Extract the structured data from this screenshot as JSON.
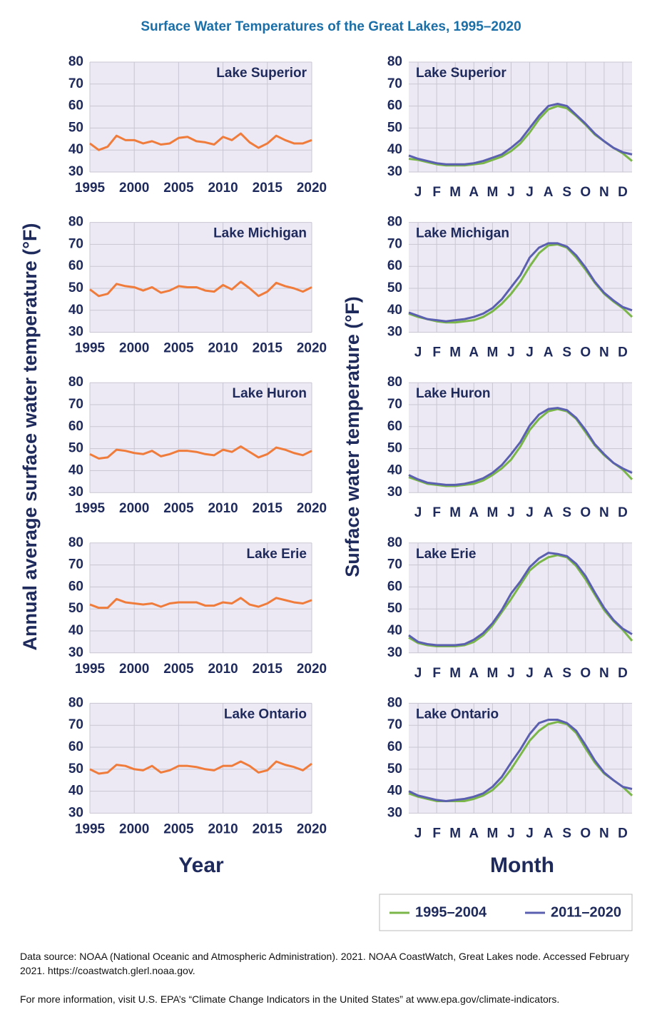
{
  "title": "Surface Water Temperatures of the Great Lakes, 1995–2020",
  "y_label_left": "Annual average surface water temperature (°F)",
  "y_label_right": "Surface water temperature (°F)",
  "x_label_left": "Year",
  "x_label_right": "Month",
  "notes": [
    "Data source: NOAA (National Oceanic and Atmospheric Administration). 2021. NOAA CoastWatch, Great Lakes node. Accessed February 2021. https://coastwatch.glerl.noaa.gov.",
    "For more information, visit U.S. EPA’s “Climate Change Indicators in the United States” at www.epa.gov/climate-indicators."
  ],
  "chart_data": [
    {
      "type": "line",
      "title": "Lake Superior",
      "color": "#f07c3c",
      "grid": true,
      "x": [
        1995,
        1996,
        1997,
        1998,
        1999,
        2000,
        2001,
        2002,
        2003,
        2004,
        2005,
        2006,
        2007,
        2008,
        2009,
        2010,
        2011,
        2012,
        2013,
        2014,
        2015,
        2016,
        2017,
        2018,
        2019,
        2020
      ],
      "values": [
        43,
        40,
        41.5,
        46.5,
        44.5,
        44.5,
        43,
        44,
        42.5,
        43,
        45.5,
        46,
        44,
        43.5,
        42.5,
        46,
        44.5,
        47.5,
        43.5,
        41,
        43,
        46.5,
        44.5,
        43,
        43,
        44.5
      ],
      "xlim": [
        1995,
        2020
      ],
      "xticks": [
        1995,
        2000,
        2005,
        2010,
        2015,
        2020
      ],
      "ylim": [
        30,
        80
      ],
      "yticks": [
        30,
        40,
        50,
        60,
        70,
        80
      ]
    },
    {
      "type": "line",
      "title": "Lake Michigan",
      "color": "#f07c3c",
      "grid": true,
      "x": [
        1995,
        1996,
        1997,
        1998,
        1999,
        2000,
        2001,
        2002,
        2003,
        2004,
        2005,
        2006,
        2007,
        2008,
        2009,
        2010,
        2011,
        2012,
        2013,
        2014,
        2015,
        2016,
        2017,
        2018,
        2019,
        2020
      ],
      "values": [
        49.5,
        46.5,
        47.5,
        52,
        51,
        50.5,
        49,
        50.5,
        48,
        49,
        51,
        50.5,
        50.5,
        49,
        48.5,
        51.5,
        49.5,
        53,
        50,
        46.5,
        48.5,
        52.5,
        51,
        50,
        48.5,
        50.5
      ],
      "xlim": [
        1995,
        2020
      ],
      "xticks": [
        1995,
        2000,
        2005,
        2010,
        2015,
        2020
      ],
      "ylim": [
        30,
        80
      ],
      "yticks": [
        30,
        40,
        50,
        60,
        70,
        80
      ]
    },
    {
      "type": "line",
      "title": "Lake Huron",
      "color": "#f07c3c",
      "grid": true,
      "x": [
        1995,
        1996,
        1997,
        1998,
        1999,
        2000,
        2001,
        2002,
        2003,
        2004,
        2005,
        2006,
        2007,
        2008,
        2009,
        2010,
        2011,
        2012,
        2013,
        2014,
        2015,
        2016,
        2017,
        2018,
        2019,
        2020
      ],
      "values": [
        47.5,
        45.5,
        46,
        49.5,
        49,
        48,
        47.5,
        49,
        46.5,
        47.5,
        49,
        49,
        48.5,
        47.5,
        47,
        49.5,
        48.5,
        51,
        48.5,
        46,
        47.5,
        50.5,
        49.5,
        48,
        47,
        49
      ],
      "xlim": [
        1995,
        2020
      ],
      "xticks": [
        1995,
        2000,
        2005,
        2010,
        2015,
        2020
      ],
      "ylim": [
        30,
        80
      ],
      "yticks": [
        30,
        40,
        50,
        60,
        70,
        80
      ]
    },
    {
      "type": "line",
      "title": "Lake Erie",
      "color": "#f07c3c",
      "grid": true,
      "x": [
        1995,
        1996,
        1997,
        1998,
        1999,
        2000,
        2001,
        2002,
        2003,
        2004,
        2005,
        2006,
        2007,
        2008,
        2009,
        2010,
        2011,
        2012,
        2013,
        2014,
        2015,
        2016,
        2017,
        2018,
        2019,
        2020
      ],
      "values": [
        52,
        50.5,
        50.5,
        54.5,
        53,
        52.5,
        52,
        52.5,
        51,
        52.5,
        53,
        53,
        53,
        51.5,
        51.5,
        53,
        52.5,
        55,
        52,
        51,
        52.5,
        55,
        54,
        53,
        52.5,
        54
      ],
      "xlim": [
        1995,
        2020
      ],
      "xticks": [
        1995,
        2000,
        2005,
        2010,
        2015,
        2020
      ],
      "ylim": [
        30,
        80
      ],
      "yticks": [
        30,
        40,
        50,
        60,
        70,
        80
      ]
    },
    {
      "type": "line",
      "title": "Lake Ontario",
      "color": "#f07c3c",
      "grid": true,
      "x": [
        1995,
        1996,
        1997,
        1998,
        1999,
        2000,
        2001,
        2002,
        2003,
        2004,
        2005,
        2006,
        2007,
        2008,
        2009,
        2010,
        2011,
        2012,
        2013,
        2014,
        2015,
        2016,
        2017,
        2018,
        2019,
        2020
      ],
      "values": [
        50,
        48,
        48.5,
        52,
        51.5,
        50,
        49.5,
        51.5,
        48.5,
        49.5,
        51.5,
        51.5,
        51,
        50,
        49.5,
        51.5,
        51.5,
        53.5,
        51.5,
        48.5,
        49.5,
        53.5,
        52,
        51,
        49.5,
        52.5
      ],
      "xlim": [
        1995,
        2020
      ],
      "xticks": [
        1995,
        2000,
        2005,
        2010,
        2015,
        2020
      ],
      "ylim": [
        30,
        80
      ],
      "yticks": [
        30,
        40,
        50,
        60,
        70,
        80
      ]
    },
    {
      "type": "line",
      "title": "Lake Superior",
      "grid": true,
      "x": [
        0,
        0.5,
        1,
        1.5,
        2,
        2.5,
        3,
        3.5,
        4,
        4.5,
        5,
        5.5,
        6,
        6.5,
        7,
        7.5,
        8,
        8.5,
        9,
        9.5,
        10,
        10.5,
        11,
        11.5,
        12
      ],
      "series": [
        {
          "name": "1995–2004",
          "color": "#7ab648",
          "values": [
            36,
            35.5,
            34.5,
            33.5,
            33,
            33,
            33,
            33.5,
            34,
            35.5,
            37,
            39.5,
            43,
            48,
            54,
            58.5,
            60,
            59,
            55.5,
            51.5,
            47,
            44,
            41,
            38.5,
            35
          ]
        },
        {
          "name": "2011–2020",
          "color": "#5b5fb0",
          "values": [
            37.5,
            36,
            35,
            34,
            33.5,
            33.5,
            33.5,
            34,
            35,
            36.5,
            38,
            41,
            44.5,
            50,
            55.5,
            60,
            61,
            60,
            56,
            52,
            47.5,
            44,
            41,
            39,
            38
          ]
        }
      ],
      "xlim": [
        0,
        12
      ],
      "xticks": [
        {
          "value": 0.5,
          "label": "J"
        },
        {
          "value": 1.5,
          "label": "F"
        },
        {
          "value": 2.5,
          "label": "M"
        },
        {
          "value": 3.5,
          "label": "A"
        },
        {
          "value": 4.5,
          "label": "M"
        },
        {
          "value": 5.5,
          "label": "J"
        },
        {
          "value": 6.5,
          "label": "J"
        },
        {
          "value": 7.5,
          "label": "A"
        },
        {
          "value": 8.5,
          "label": "S"
        },
        {
          "value": 9.5,
          "label": "O"
        },
        {
          "value": 10.5,
          "label": "N"
        },
        {
          "value": 11.5,
          "label": "D"
        }
      ],
      "ylim": [
        30,
        80
      ],
      "yticks": [
        30,
        40,
        50,
        60,
        70,
        80
      ]
    },
    {
      "type": "line",
      "title": "Lake Michigan",
      "grid": true,
      "x": [
        0,
        0.5,
        1,
        1.5,
        2,
        2.5,
        3,
        3.5,
        4,
        4.5,
        5,
        5.5,
        6,
        6.5,
        7,
        7.5,
        8,
        8.5,
        9,
        9.5,
        10,
        10.5,
        11,
        11.5,
        12
      ],
      "series": [
        {
          "color": "#7ab648",
          "values": [
            38.5,
            37,
            36,
            35,
            34.5,
            34.5,
            35,
            35.5,
            37,
            39.5,
            43,
            47.5,
            53,
            60,
            66,
            69.5,
            70,
            68.5,
            64,
            58.5,
            52.5,
            47.5,
            44,
            41,
            37
          ]
        },
        {
          "color": "#5b5fb0",
          "values": [
            39,
            37.5,
            36,
            35.5,
            35,
            35.5,
            36,
            37,
            38.5,
            41,
            45,
            50.5,
            56,
            64,
            68.5,
            70.5,
            70.5,
            69,
            65,
            59.5,
            53,
            48,
            44.5,
            41.5,
            40
          ]
        }
      ],
      "xlim": [
        0,
        12
      ],
      "xticks": [
        {
          "value": 0.5,
          "label": "J"
        },
        {
          "value": 1.5,
          "label": "F"
        },
        {
          "value": 2.5,
          "label": "M"
        },
        {
          "value": 3.5,
          "label": "A"
        },
        {
          "value": 4.5,
          "label": "M"
        },
        {
          "value": 5.5,
          "label": "J"
        },
        {
          "value": 6.5,
          "label": "J"
        },
        {
          "value": 7.5,
          "label": "A"
        },
        {
          "value": 8.5,
          "label": "S"
        },
        {
          "value": 9.5,
          "label": "O"
        },
        {
          "value": 10.5,
          "label": "N"
        },
        {
          "value": 11.5,
          "label": "D"
        }
      ],
      "ylim": [
        30,
        80
      ],
      "yticks": [
        30,
        40,
        50,
        60,
        70,
        80
      ]
    },
    {
      "type": "line",
      "title": "Lake Huron",
      "grid": true,
      "x": [
        0,
        0.5,
        1,
        1.5,
        2,
        2.5,
        3,
        3.5,
        4,
        4.5,
        5,
        5.5,
        6,
        6.5,
        7,
        7.5,
        8,
        8.5,
        9,
        9.5,
        10,
        10.5,
        11,
        11.5,
        12
      ],
      "series": [
        {
          "color": "#7ab648",
          "values": [
            37,
            35.5,
            34,
            33.5,
            33,
            33,
            33.5,
            34,
            35.5,
            38,
            41,
            45,
            51,
            58.5,
            63.5,
            67,
            68,
            67,
            63.5,
            57.5,
            51.5,
            47,
            43.5,
            40.5,
            36
          ]
        },
        {
          "color": "#5b5fb0",
          "values": [
            38,
            36,
            34.5,
            34,
            33.5,
            33.5,
            34,
            35,
            36.5,
            39,
            42.5,
            47.5,
            53,
            60.5,
            65.5,
            68,
            68.5,
            67.5,
            64,
            58.5,
            52,
            47.5,
            43.5,
            41,
            39
          ]
        }
      ],
      "xlim": [
        0,
        12
      ],
      "xticks": [
        {
          "value": 0.5,
          "label": "J"
        },
        {
          "value": 1.5,
          "label": "F"
        },
        {
          "value": 2.5,
          "label": "M"
        },
        {
          "value": 3.5,
          "label": "A"
        },
        {
          "value": 4.5,
          "label": "M"
        },
        {
          "value": 5.5,
          "label": "J"
        },
        {
          "value": 6.5,
          "label": "J"
        },
        {
          "value": 7.5,
          "label": "A"
        },
        {
          "value": 8.5,
          "label": "S"
        },
        {
          "value": 9.5,
          "label": "O"
        },
        {
          "value": 10.5,
          "label": "N"
        },
        {
          "value": 11.5,
          "label": "D"
        }
      ],
      "ylim": [
        30,
        80
      ],
      "yticks": [
        30,
        40,
        50,
        60,
        70,
        80
      ]
    },
    {
      "type": "line",
      "title": "Lake Erie",
      "grid": true,
      "x": [
        0,
        0.5,
        1,
        1.5,
        2,
        2.5,
        3,
        3.5,
        4,
        4.5,
        5,
        5.5,
        6,
        6.5,
        7,
        7.5,
        8,
        8.5,
        9,
        9.5,
        10,
        10.5,
        11,
        11.5,
        12
      ],
      "series": [
        {
          "color": "#7ab648",
          "values": [
            37,
            34.5,
            33.5,
            33,
            33,
            33,
            33.5,
            35,
            38,
            42.5,
            48.5,
            54.5,
            61,
            67.5,
            71,
            73.5,
            74.5,
            73.5,
            69.5,
            63.5,
            56.5,
            49.5,
            44.5,
            40.5,
            35.5
          ]
        },
        {
          "color": "#5b5fb0",
          "values": [
            38,
            35,
            34,
            33.5,
            33.5,
            33.5,
            34,
            36,
            39,
            43.5,
            49.5,
            57,
            62.5,
            69,
            73,
            75.5,
            75,
            74,
            70.5,
            65,
            57.5,
            50.5,
            45,
            41,
            38.5
          ]
        }
      ],
      "xlim": [
        0,
        12
      ],
      "xticks": [
        {
          "value": 0.5,
          "label": "J"
        },
        {
          "value": 1.5,
          "label": "F"
        },
        {
          "value": 2.5,
          "label": "M"
        },
        {
          "value": 3.5,
          "label": "A"
        },
        {
          "value": 4.5,
          "label": "M"
        },
        {
          "value": 5.5,
          "label": "J"
        },
        {
          "value": 6.5,
          "label": "J"
        },
        {
          "value": 7.5,
          "label": "A"
        },
        {
          "value": 8.5,
          "label": "S"
        },
        {
          "value": 9.5,
          "label": "O"
        },
        {
          "value": 10.5,
          "label": "N"
        },
        {
          "value": 11.5,
          "label": "D"
        }
      ],
      "ylim": [
        30,
        80
      ],
      "yticks": [
        30,
        40,
        50,
        60,
        70,
        80
      ]
    },
    {
      "type": "line",
      "title": "Lake Ontario",
      "grid": true,
      "x": [
        0,
        0.5,
        1,
        1.5,
        2,
        2.5,
        3,
        3.5,
        4,
        4.5,
        5,
        5.5,
        6,
        6.5,
        7,
        7.5,
        8,
        8.5,
        9,
        9.5,
        10,
        10.5,
        11,
        11.5,
        12
      ],
      "series": [
        {
          "color": "#7ab648",
          "values": [
            39,
            37.5,
            36.5,
            35.5,
            35.5,
            35.5,
            35.5,
            36.5,
            38,
            40.5,
            44.5,
            50,
            56.5,
            63,
            67.5,
            70.5,
            71.5,
            70.5,
            66.5,
            59.5,
            53,
            48,
            45,
            42,
            38
          ]
        },
        {
          "color": "#5b5fb0",
          "values": [
            40,
            38,
            37,
            36,
            35.5,
            36,
            36.5,
            37.5,
            39,
            42,
            46.5,
            53,
            59,
            66,
            71,
            72.5,
            72.5,
            71,
            67.5,
            61,
            54,
            48.5,
            45,
            42,
            41
          ]
        }
      ],
      "xlim": [
        0,
        12
      ],
      "xticks": [
        {
          "value": 0.5,
          "label": "J"
        },
        {
          "value": 1.5,
          "label": "F"
        },
        {
          "value": 2.5,
          "label": "M"
        },
        {
          "value": 3.5,
          "label": "A"
        },
        {
          "value": 4.5,
          "label": "M"
        },
        {
          "value": 5.5,
          "label": "J"
        },
        {
          "value": 6.5,
          "label": "J"
        },
        {
          "value": 7.5,
          "label": "A"
        },
        {
          "value": 8.5,
          "label": "S"
        },
        {
          "value": 9.5,
          "label": "O"
        },
        {
          "value": 10.5,
          "label": "N"
        },
        {
          "value": 11.5,
          "label": "D"
        }
      ],
      "ylim": [
        30,
        80
      ],
      "yticks": [
        30,
        40,
        50,
        60,
        70,
        80
      ]
    }
  ]
}
